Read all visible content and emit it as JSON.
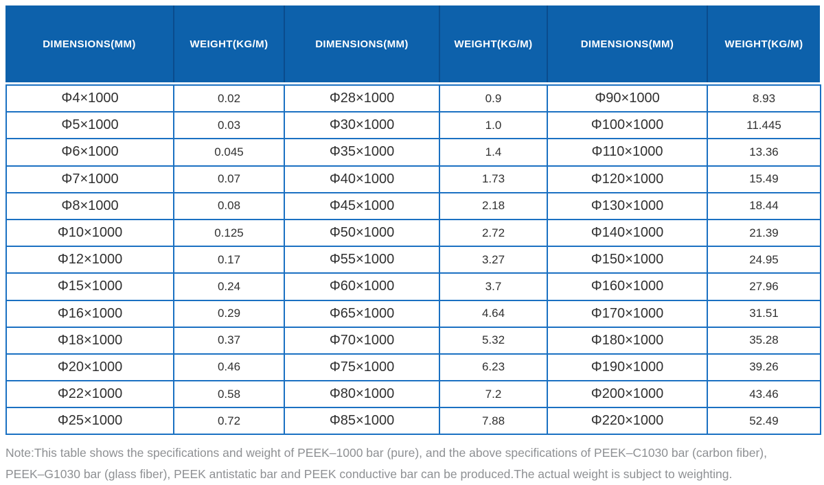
{
  "colors": {
    "page_bg": "#ffffff",
    "header_bg": "#0d61ab",
    "header_divider": "#0a4c8d",
    "header_text": "#ffffff",
    "grid_border": "#1a70c2",
    "cell_text": "#303030",
    "note_text": "#8e9093"
  },
  "table": {
    "columns": [
      "DIMENSIONS(MM)",
      "WEIGHT(KG/M)",
      "DIMENSIONS(MM)",
      "WEIGHT(KG/M)",
      "DIMENSIONS(MM)",
      "WEIGHT(KG/M)"
    ],
    "rows": [
      [
        "Φ4×1000",
        "0.02",
        "Φ28×1000",
        "0.9",
        "Φ90×1000",
        "8.93"
      ],
      [
        "Φ5×1000",
        "0.03",
        "Φ30×1000",
        "1.0",
        "Φ100×1000",
        "11.445"
      ],
      [
        "Φ6×1000",
        "0.045",
        "Φ35×1000",
        "1.4",
        "Φ110×1000",
        "13.36"
      ],
      [
        "Φ7×1000",
        "0.07",
        "Φ40×1000",
        "1.73",
        "Φ120×1000",
        "15.49"
      ],
      [
        "Φ8×1000",
        "0.08",
        "Φ45×1000",
        "2.18",
        "Φ130×1000",
        "18.44"
      ],
      [
        "Φ10×1000",
        "0.125",
        "Φ50×1000",
        "2.72",
        "Φ140×1000",
        "21.39"
      ],
      [
        "Φ12×1000",
        "0.17",
        "Φ55×1000",
        "3.27",
        "Φ150×1000",
        "24.95"
      ],
      [
        "Φ15×1000",
        "0.24",
        "Φ60×1000",
        "3.7",
        "Φ160×1000",
        "27.96"
      ],
      [
        "Φ16×1000",
        "0.29",
        "Φ65×1000",
        "4.64",
        "Φ170×1000",
        "31.51"
      ],
      [
        "Φ18×1000",
        "0.37",
        "Φ70×1000",
        "5.32",
        "Φ180×1000",
        "35.28"
      ],
      [
        "Φ20×1000",
        "0.46",
        "Φ75×1000",
        "6.23",
        "Φ190×1000",
        "39.26"
      ],
      [
        "Φ22×1000",
        "0.58",
        "Φ80×1000",
        "7.2",
        "Φ200×1000",
        "43.46"
      ],
      [
        "Φ25×1000",
        "0.72",
        "Φ85×1000",
        "7.88",
        "Φ220×1000",
        "52.49"
      ]
    ]
  },
  "note": {
    "line1": "Note:This table shows the specifications and weight of PEEK–1000 bar (pure), and the above specifications of PEEK–C1030 bar (carbon fiber),",
    "line2": "PEEK–G1030 bar (glass fiber), PEEK antistatic bar and PEEK conductive bar can be produced.The actual weight is subject to weighting."
  }
}
